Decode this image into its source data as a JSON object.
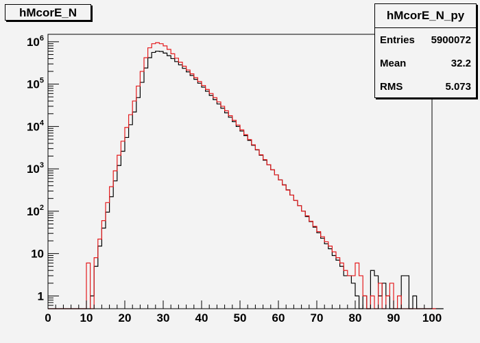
{
  "window": {
    "title": "hMcorE_N"
  },
  "stats": {
    "name": "hMcorE_N_py",
    "rows": [
      {
        "label": "Entries",
        "value": "5900072"
      },
      {
        "label": "Mean",
        "value": "32.2"
      },
      {
        "label": "RMS",
        "value": "5.073"
      }
    ]
  },
  "chart_data": {
    "type": "histogram",
    "title": "hMcorE_N",
    "xlabel": "",
    "ylabel": "",
    "xlim": [
      0,
      100
    ],
    "ylim": [
      0.5,
      1500000
    ],
    "yscale": "log",
    "grid": false,
    "bin_width": 1,
    "x_ticks": [
      {
        "value": 0,
        "label": "0"
      },
      {
        "value": 10,
        "label": "10"
      },
      {
        "value": 20,
        "label": "20"
      },
      {
        "value": 30,
        "label": "30"
      },
      {
        "value": 40,
        "label": "40"
      },
      {
        "value": 50,
        "label": "50"
      },
      {
        "value": 60,
        "label": "60"
      },
      {
        "value": 70,
        "label": "70"
      },
      {
        "value": 80,
        "label": "80"
      },
      {
        "value": 90,
        "label": "90"
      },
      {
        "value": 100,
        "label": "100"
      }
    ],
    "y_ticks": [
      {
        "value": 1,
        "base": "1",
        "exp": ""
      },
      {
        "value": 10,
        "base": "10",
        "exp": ""
      },
      {
        "value": 100,
        "base": "10",
        "exp": "2"
      },
      {
        "value": 1000,
        "base": "10",
        "exp": "3"
      },
      {
        "value": 10000,
        "base": "10",
        "exp": "4"
      },
      {
        "value": 100000,
        "base": "10",
        "exp": "5"
      },
      {
        "value": 1000000,
        "base": "10",
        "exp": "6"
      }
    ],
    "series": [
      {
        "color": "#000000",
        "values": [
          0,
          0,
          0,
          0,
          0,
          0,
          0,
          0,
          0,
          0,
          0,
          1,
          5,
          15,
          40,
          95,
          220,
          520,
          1200,
          2600,
          5500,
          11000,
          22000,
          48000,
          110000,
          240000,
          420000,
          560000,
          600000,
          590000,
          540000,
          470000,
          400000,
          340000,
          285000,
          235000,
          195000,
          160000,
          130000,
          105000,
          85000,
          68000,
          54000,
          43000,
          34000,
          27000,
          21000,
          16500,
          13000,
          10000,
          7800,
          6100,
          4700,
          3600,
          2800,
          2100,
          1600,
          1250,
          950,
          720,
          550,
          420,
          320,
          240,
          180,
          135,
          100,
          75,
          57,
          42,
          31,
          23,
          17,
          13,
          9,
          7,
          5,
          3,
          3,
          2,
          1,
          0,
          1,
          0,
          4,
          3,
          1,
          2,
          1,
          0,
          0,
          0,
          3,
          3,
          0,
          1,
          0,
          0,
          0,
          0,
          0,
          0,
          0
        ]
      },
      {
        "color": "#e41a1c",
        "values": [
          0,
          0,
          0,
          0,
          0,
          0,
          0,
          0,
          0,
          0,
          6,
          0,
          8,
          22,
          60,
          160,
          380,
          900,
          2100,
          4500,
          9500,
          19000,
          40000,
          90000,
          200000,
          420000,
          720000,
          900000,
          950000,
          900000,
          800000,
          660000,
          520000,
          410000,
          330000,
          265000,
          215000,
          175000,
          142000,
          115000,
          93000,
          75000,
          60000,
          48000,
          38000,
          30000,
          23500,
          18000,
          14000,
          10800,
          8300,
          6400,
          4900,
          3700,
          2850,
          2150,
          1650,
          1250,
          950,
          720,
          550,
          415,
          315,
          240,
          180,
          135,
          100,
          78,
          58,
          44,
          33,
          25,
          19,
          15,
          11,
          8,
          6,
          4,
          3,
          3,
          6,
          3,
          1,
          0,
          1,
          0,
          2,
          0,
          1,
          2,
          0,
          1,
          0,
          0,
          0,
          0,
          0,
          0,
          0,
          0,
          0
        ]
      }
    ]
  }
}
